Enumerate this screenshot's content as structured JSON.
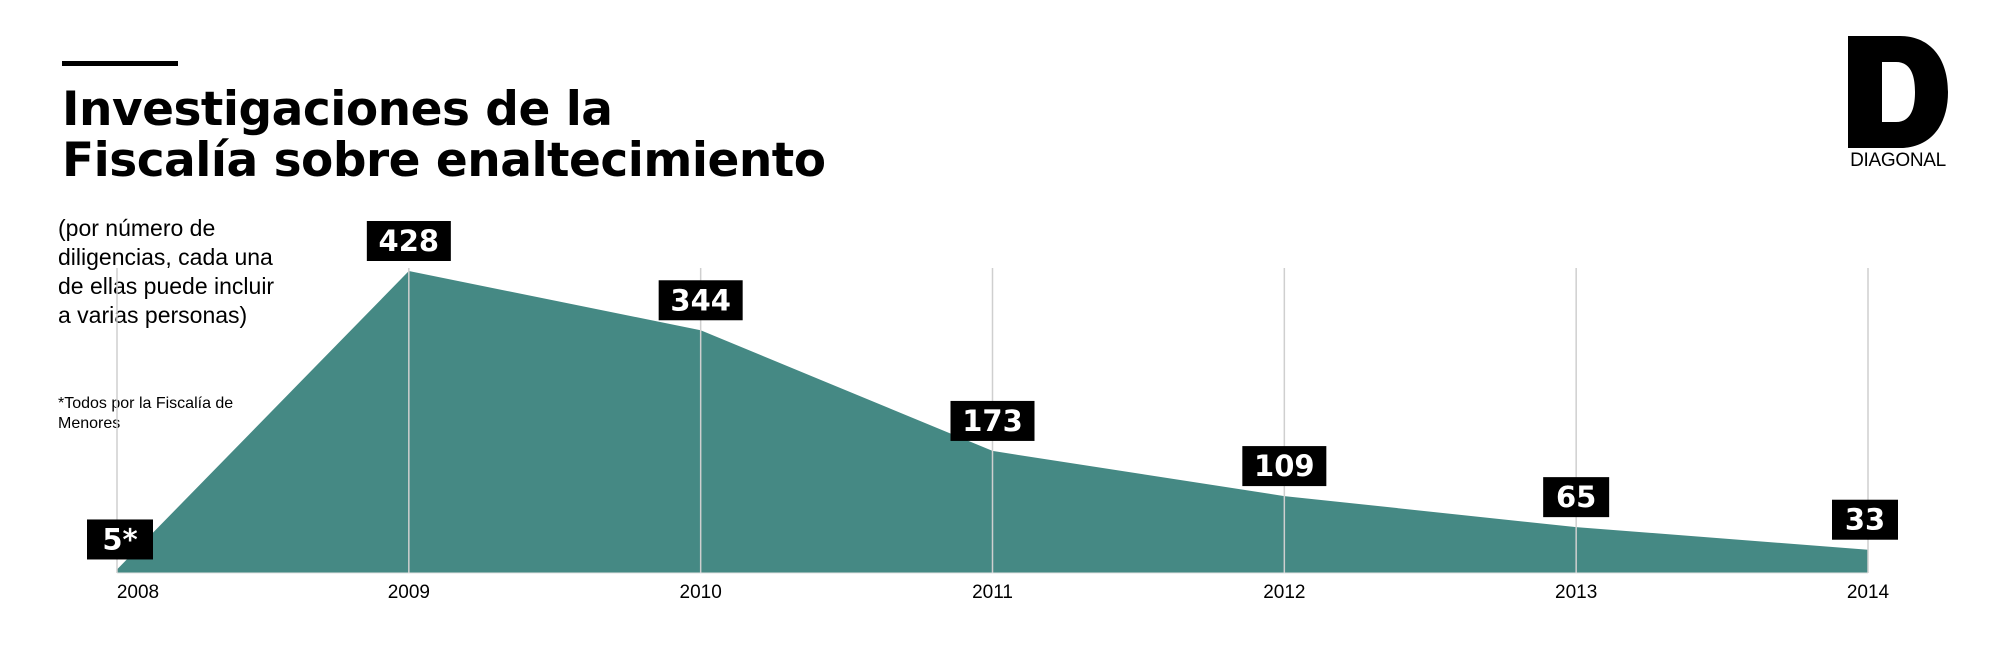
{
  "header": {
    "title_line1": "Investigaciones de la",
    "title_line2": "Fiscalía sobre enaltecimiento",
    "subtitle": "(por número de diligencias, cada una de ellas puede incluir a varias personas)",
    "footnote": "*Todos por la Fiscalía de Menores"
  },
  "logo": {
    "letter": "D",
    "name": "DIAGONAL"
  },
  "colors": {
    "area": "#458984",
    "label_bg": "#000000",
    "label_text": "#ffffff",
    "gridline": "#cfcfcf"
  },
  "chart_data": {
    "type": "area",
    "title": "Investigaciones de la Fiscalía sobre enaltecimiento",
    "subtitle": "(por número de diligencias, cada una de ellas puede incluir a varias personas)",
    "x": [
      "2008",
      "2009",
      "2010",
      "2011",
      "2012",
      "2013",
      "2014"
    ],
    "values": [
      5,
      428,
      344,
      173,
      109,
      65,
      33
    ],
    "data_labels": [
      "5*",
      "428",
      "344",
      "173",
      "109",
      "65",
      "33"
    ],
    "annotations": [
      "*Todos por la Fiscalía de Menores"
    ],
    "ylim": [
      0,
      428
    ],
    "grid": true,
    "legend": "none"
  }
}
